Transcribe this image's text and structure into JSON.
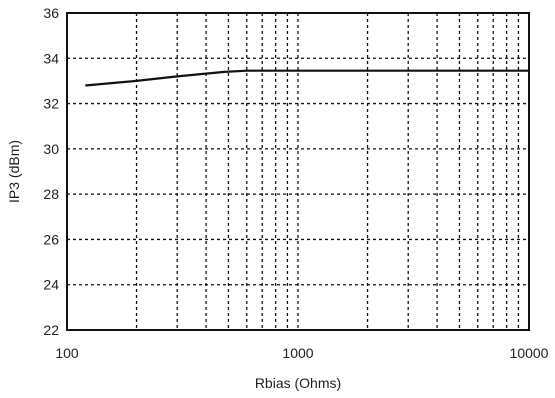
{
  "chart_data": {
    "type": "line",
    "title": "",
    "xlabel": "Rbias (Ohms)",
    "ylabel": "IP3 (dBm)",
    "xscale": "log",
    "xlim": [
      100,
      10000
    ],
    "ylim": [
      22,
      36
    ],
    "grid": true,
    "x_ticks": [
      "100",
      "1000",
      "10000"
    ],
    "y_ticks": [
      "22",
      "24",
      "26",
      "28",
      "30",
      "32",
      "34",
      "36"
    ],
    "series": [
      {
        "x": [
          120,
          200,
          300,
          480,
          600,
          1000,
          2000,
          5000,
          10000
        ],
        "y": [
          32.8,
          33.0,
          33.2,
          33.4,
          33.45,
          33.45,
          33.45,
          33.45,
          33.45
        ]
      }
    ],
    "colors": {
      "line": "#111111",
      "grid": "#111111",
      "frame": "#111111"
    }
  }
}
